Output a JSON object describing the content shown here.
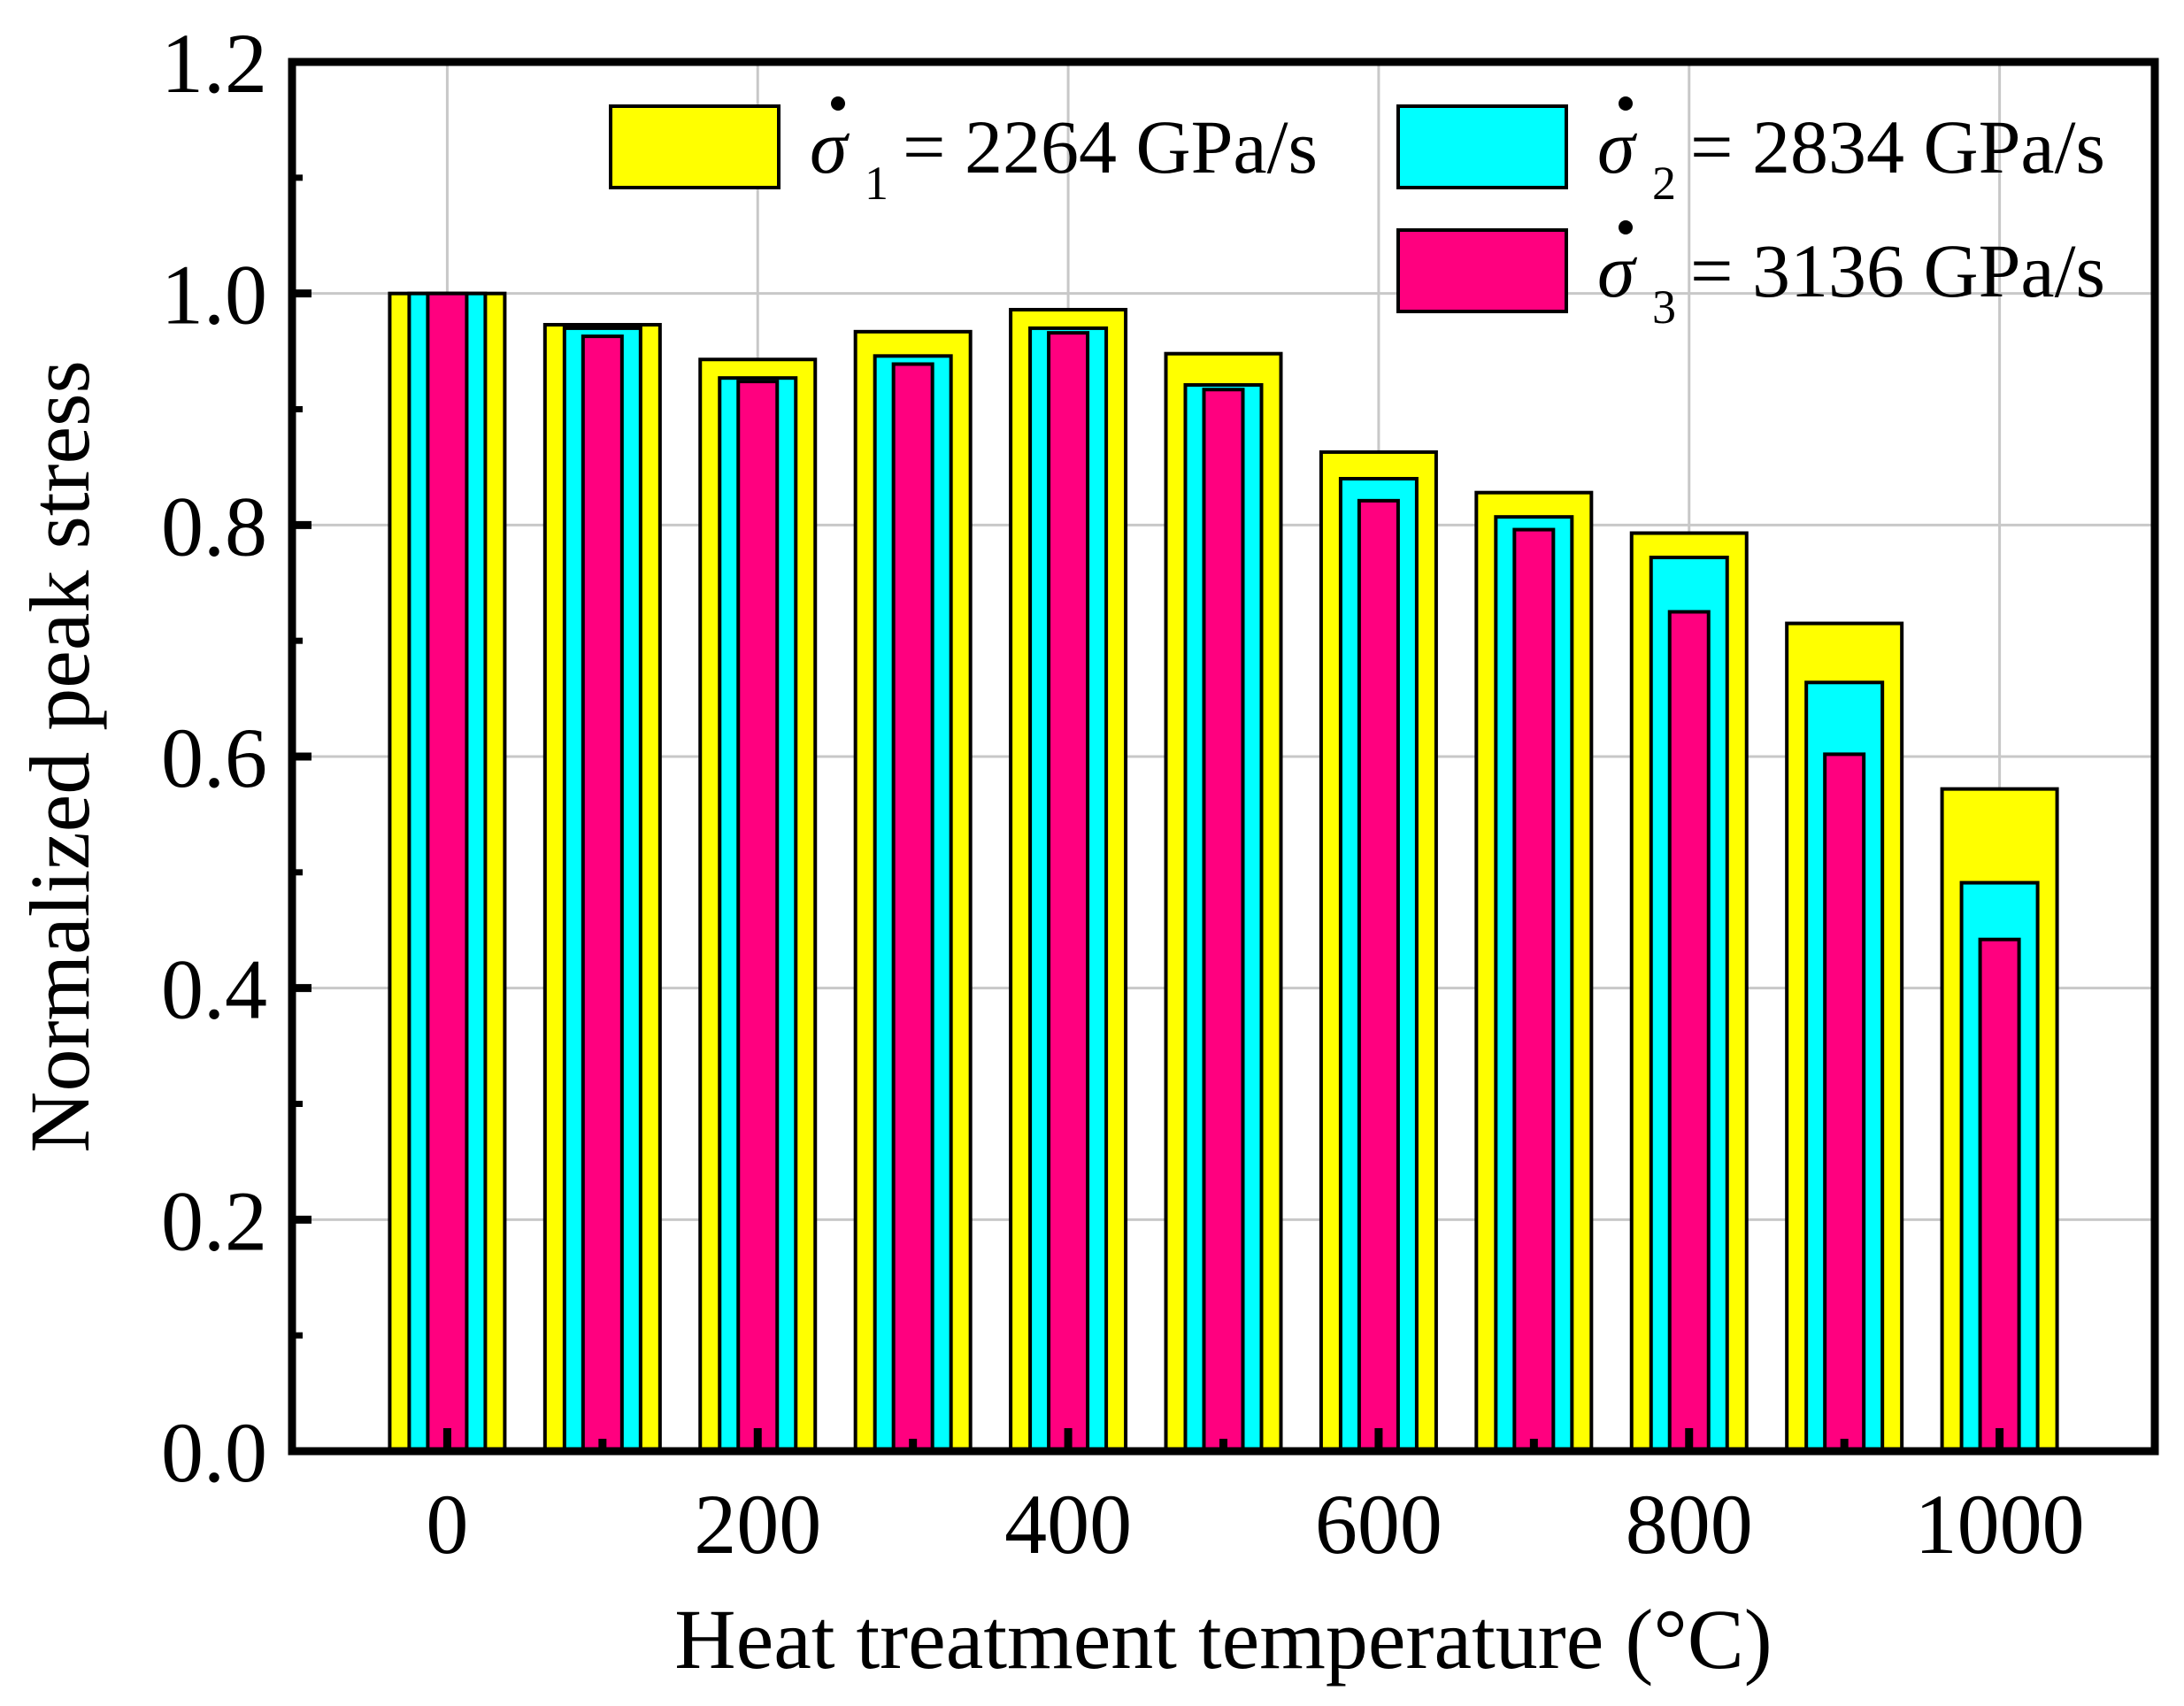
{
  "chart_data": {
    "type": "bar",
    "xlabel": "Heat treatment temperature (°C)",
    "ylabel": "Normalized peak stress",
    "ylim": [
      0,
      1.2
    ],
    "xlim": [
      -100,
      1100
    ],
    "x": [
      0,
      100,
      200,
      300,
      400,
      500,
      600,
      700,
      800,
      900,
      1000
    ],
    "x_ticks": [
      0,
      200,
      400,
      600,
      800,
      1000
    ],
    "x_tick_labels": [
      "0",
      "200",
      "400",
      "600",
      "800",
      "1000"
    ],
    "y_ticks": [
      0.0,
      0.2,
      0.4,
      0.6,
      0.8,
      1.0,
      1.2
    ],
    "y_tick_labels": [
      "0.0",
      "0.2",
      "0.4",
      "0.6",
      "0.8",
      "1.0",
      "1.2"
    ],
    "grid": true,
    "legend_position": "top-right",
    "series": [
      {
        "name": "σ̇1 = 2264 GPa/s",
        "symbol": "σ",
        "subscript": "1",
        "label": "= 2264 GPa/s",
        "color": "#ffff00",
        "values": [
          1.0,
          0.973,
          0.943,
          0.967,
          0.986,
          0.948,
          0.863,
          0.828,
          0.793,
          0.715,
          0.572
        ]
      },
      {
        "name": "σ̇2 = 2834 GPa/s",
        "symbol": "σ",
        "subscript": "2",
        "label": "= 2834 GPa/s",
        "color": "#00ffff",
        "values": [
          1.0,
          0.97,
          0.927,
          0.946,
          0.97,
          0.921,
          0.84,
          0.807,
          0.772,
          0.664,
          0.491
        ]
      },
      {
        "name": "σ̇3 = 3136 GPa/s",
        "symbol": "σ",
        "subscript": "3",
        "label": "= 3136 GPa/s",
        "color": "#ff007f",
        "values": [
          1.0,
          0.963,
          0.924,
          0.939,
          0.966,
          0.917,
          0.821,
          0.796,
          0.725,
          0.602,
          0.442
        ]
      }
    ]
  }
}
